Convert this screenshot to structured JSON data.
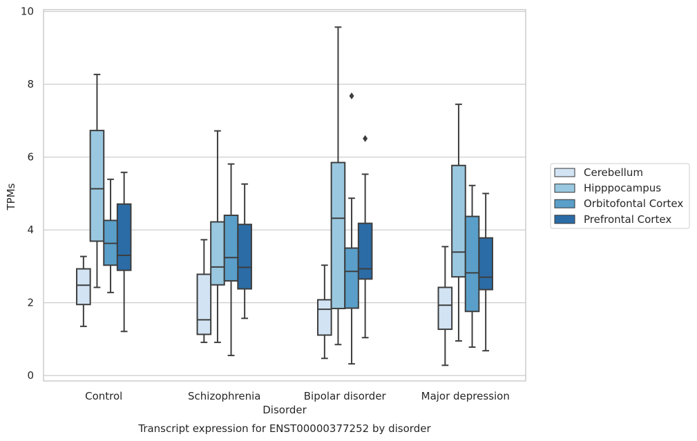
{
  "chart_data": {
    "type": "box",
    "title": "Transcript expression for ENST00000377252 by disorder",
    "xlabel": "Disorder",
    "ylabel": "TPMs",
    "ylim": [
      -0.15,
      10.05
    ],
    "yticks": [
      0,
      2,
      4,
      6,
      8,
      10
    ],
    "grid": "horizontal",
    "legend_position": "right",
    "categories": [
      "Control",
      "Schizophrenia",
      "Bipolar disorder",
      "Major depression"
    ],
    "series": [
      {
        "name": "Cerebellum",
        "color": "#d2e3f3",
        "boxes": [
          {
            "whislo": 1.35,
            "q1": 1.95,
            "med": 2.48,
            "q3": 2.93,
            "whishi": 3.27,
            "fliers": []
          },
          {
            "whislo": 0.91,
            "q1": 1.13,
            "med": 1.53,
            "q3": 2.78,
            "whishi": 3.73,
            "fliers": []
          },
          {
            "whislo": 0.47,
            "q1": 1.11,
            "med": 1.82,
            "q3": 2.08,
            "whishi": 3.03,
            "fliers": []
          },
          {
            "whislo": 0.28,
            "q1": 1.27,
            "med": 1.93,
            "q3": 2.42,
            "whishi": 3.54,
            "fliers": []
          }
        ]
      },
      {
        "name": "Hipppocampus",
        "color": "#9ac8e0",
        "boxes": [
          {
            "whislo": 2.42,
            "q1": 3.69,
            "med": 5.13,
            "q3": 6.73,
            "whishi": 8.27,
            "fliers": []
          },
          {
            "whislo": 0.91,
            "q1": 2.49,
            "med": 2.98,
            "q3": 4.22,
            "whishi": 6.72,
            "fliers": []
          },
          {
            "whislo": 0.85,
            "q1": 1.84,
            "med": 4.32,
            "q3": 5.85,
            "whishi": 9.57,
            "fliers": []
          },
          {
            "whislo": 0.95,
            "q1": 2.71,
            "med": 3.39,
            "q3": 5.77,
            "whishi": 7.45,
            "fliers": []
          }
        ]
      },
      {
        "name": "Orbitofontal Cortex",
        "color": "#5a9fc9",
        "boxes": [
          {
            "whislo": 2.28,
            "q1": 3.03,
            "med": 3.63,
            "q3": 4.26,
            "whishi": 5.39,
            "fliers": []
          },
          {
            "whislo": 0.55,
            "q1": 2.6,
            "med": 3.24,
            "q3": 4.4,
            "whishi": 5.81,
            "fliers": []
          },
          {
            "whislo": 0.32,
            "q1": 1.85,
            "med": 2.86,
            "q3": 3.5,
            "whishi": 4.87,
            "fliers": [
              7.68
            ]
          },
          {
            "whislo": 0.78,
            "q1": 1.76,
            "med": 2.82,
            "q3": 4.37,
            "whishi": 5.22,
            "fliers": []
          }
        ]
      },
      {
        "name": "Prefrontal Cortex",
        "color": "#2b6ca6",
        "boxes": [
          {
            "whislo": 1.21,
            "q1": 2.89,
            "med": 3.3,
            "q3": 4.71,
            "whishi": 5.58,
            "fliers": []
          },
          {
            "whislo": 1.57,
            "q1": 2.38,
            "med": 2.97,
            "q3": 4.15,
            "whishi": 5.26,
            "fliers": []
          },
          {
            "whislo": 1.04,
            "q1": 2.65,
            "med": 2.93,
            "q3": 4.18,
            "whishi": 5.53,
            "fliers": [
              6.51
            ]
          },
          {
            "whislo": 0.68,
            "q1": 2.36,
            "med": 2.7,
            "q3": 3.78,
            "whishi": 5.0,
            "fliers": []
          }
        ]
      }
    ]
  }
}
